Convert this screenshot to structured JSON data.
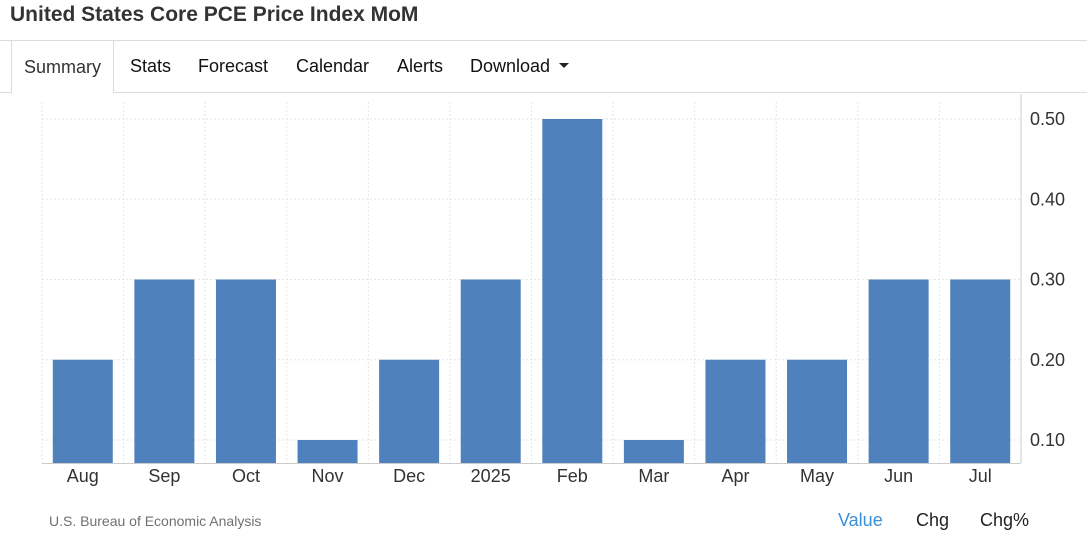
{
  "title": "United States Core PCE Price Index MoM",
  "tabs": [
    {
      "label": "Summary"
    },
    {
      "label": "Stats"
    },
    {
      "label": "Forecast"
    },
    {
      "label": "Calendar"
    },
    {
      "label": "Alerts"
    },
    {
      "label": "Download"
    }
  ],
  "source": "U.S. Bureau of Economic Analysis",
  "view_options": [
    {
      "label": "Value"
    },
    {
      "label": "Chg"
    },
    {
      "label": "Chg%"
    }
  ],
  "colors": {
    "bar": "#4f81bd",
    "grid": "#e6e6e6",
    "active_link": "#3a8fd9"
  },
  "chart_data": {
    "type": "bar",
    "categories": [
      "Aug",
      "Sep",
      "Oct",
      "Nov",
      "Dec",
      "2025",
      "Feb",
      "Mar",
      "Apr",
      "May",
      "Jun",
      "Jul"
    ],
    "values": [
      0.2,
      0.3,
      0.3,
      0.1,
      0.2,
      0.3,
      0.5,
      0.1,
      0.2,
      0.2,
      0.3,
      0.3
    ],
    "yticks": [
      "0.10",
      "0.20",
      "0.30",
      "0.40",
      "0.50"
    ],
    "ytick_values": [
      0.1,
      0.2,
      0.3,
      0.4,
      0.5
    ],
    "ylim": [
      0.07,
      0.53
    ],
    "y_axis_side": "right",
    "grid": true
  }
}
